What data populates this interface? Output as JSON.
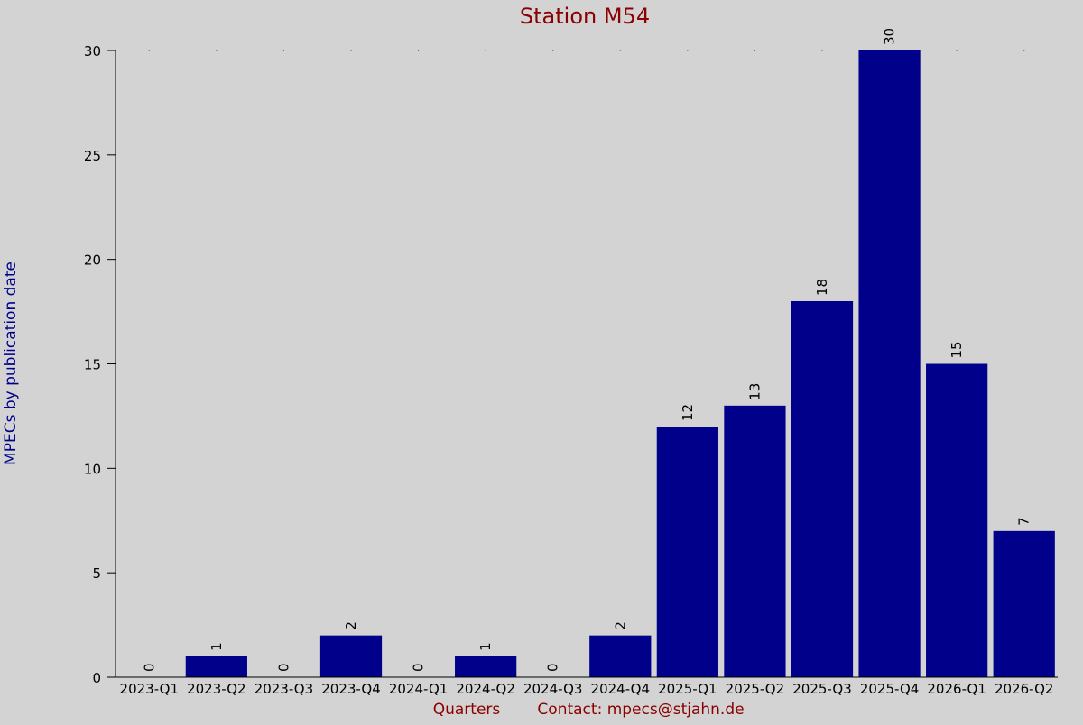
{
  "chart_data": {
    "type": "bar",
    "title": "Station M54",
    "xlabel": "Quarters",
    "ylabel": "MPECs by publication date",
    "footer_note": "Contact: mpecs@stjahn.de",
    "categories": [
      "2023-Q1",
      "2023-Q2",
      "2023-Q3",
      "2023-Q4",
      "2024-Q1",
      "2024-Q2",
      "2024-Q3",
      "2024-Q4",
      "2025-Q1",
      "2025-Q2",
      "2025-Q3",
      "2025-Q4",
      "2026-Q1",
      "2026-Q2"
    ],
    "values": [
      0,
      1,
      0,
      2,
      0,
      1,
      0,
      2,
      12,
      13,
      18,
      30,
      15,
      7
    ],
    "y_ticks": [
      "0",
      "5",
      "10",
      "15",
      "20",
      "25",
      "30"
    ],
    "ylim": [
      0,
      30
    ],
    "grid": false,
    "legend": "none",
    "data_labels": true,
    "colors": {
      "background": "#d3d3d3",
      "bar": "#00008b",
      "title": "#8b0000",
      "ylabel": "#00008b",
      "xlabel": "#8b0000",
      "axis": "#000000",
      "tick_text": "#000000"
    }
  }
}
